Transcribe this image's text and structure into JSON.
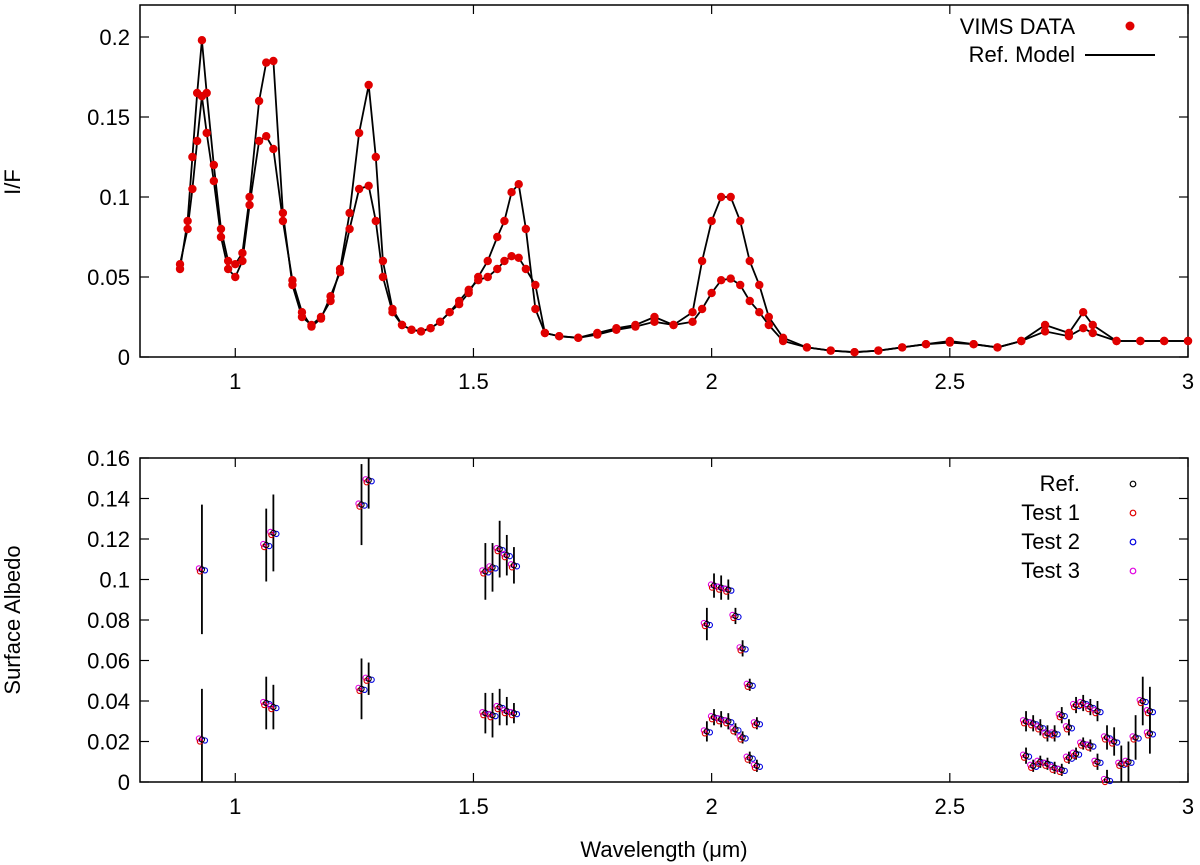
{
  "chart_data": [
    {
      "type": "line",
      "ylabel": "I/F",
      "xlim": [
        0.8,
        3.0
      ],
      "ylim": [
        0,
        0.22
      ],
      "xticks": [
        "1",
        "1.5",
        "2",
        "2.5",
        "3"
      ],
      "xtick_values": [
        1,
        1.5,
        2,
        2.5,
        3
      ],
      "yticks": [
        "0",
        "0.05",
        "0.1",
        "0.15",
        "0.2"
      ],
      "ytick_values": [
        0,
        0.05,
        0.1,
        0.15,
        0.2
      ],
      "legend_position": "top-right",
      "legend": [
        {
          "label": "VIMS DATA",
          "marker": "dot",
          "color": "#e00000"
        },
        {
          "label": "Ref. Model",
          "marker": "line",
          "color": "#000000"
        }
      ],
      "series": [
        {
          "name": "spectrum-high",
          "x": [
            0.884,
            0.9,
            0.91,
            0.92,
            0.93,
            0.94,
            0.955,
            0.97,
            0.985,
            1.0,
            1.015,
            1.03,
            1.05,
            1.065,
            1.08,
            1.1,
            1.12,
            1.14,
            1.16,
            1.18,
            1.2,
            1.22,
            1.24,
            1.26,
            1.28,
            1.295,
            1.31,
            1.33,
            1.35,
            1.37,
            1.39,
            1.41,
            1.43,
            1.45,
            1.47,
            1.49,
            1.51,
            1.53,
            1.55,
            1.565,
            1.58,
            1.595,
            1.61,
            1.63,
            1.65,
            1.68,
            1.72,
            1.76,
            1.8,
            1.84,
            1.88,
            1.92,
            1.96,
            1.98,
            2.0,
            2.02,
            2.04,
            2.06,
            2.08,
            2.1,
            2.12,
            2.15,
            2.2,
            2.25,
            2.3,
            2.35,
            2.4,
            2.45,
            2.5,
            2.55,
            2.6,
            2.65,
            2.7,
            2.75,
            2.78,
            2.8,
            2.85,
            2.9,
            2.95,
            3.0
          ],
          "values": [
            0.055,
            0.085,
            0.125,
            0.165,
            0.198,
            0.165,
            0.12,
            0.08,
            0.06,
            0.058,
            0.065,
            0.1,
            0.16,
            0.184,
            0.185,
            0.09,
            0.045,
            0.025,
            0.02,
            0.025,
            0.035,
            0.055,
            0.09,
            0.14,
            0.17,
            0.125,
            0.06,
            0.03,
            0.02,
            0.017,
            0.016,
            0.018,
            0.022,
            0.028,
            0.033,
            0.04,
            0.05,
            0.06,
            0.075,
            0.085,
            0.103,
            0.108,
            0.08,
            0.03,
            0.015,
            0.013,
            0.012,
            0.015,
            0.018,
            0.02,
            0.025,
            0.02,
            0.028,
            0.06,
            0.085,
            0.1,
            0.1,
            0.085,
            0.06,
            0.045,
            0.025,
            0.012,
            0.006,
            0.004,
            0.003,
            0.004,
            0.006,
            0.008,
            0.01,
            0.008,
            0.006,
            0.01,
            0.02,
            0.015,
            0.028,
            0.02,
            0.01,
            0.01,
            0.01,
            0.01
          ]
        },
        {
          "name": "spectrum-low",
          "x": [
            0.884,
            0.9,
            0.91,
            0.92,
            0.93,
            0.94,
            0.955,
            0.97,
            0.985,
            1.0,
            1.015,
            1.03,
            1.05,
            1.065,
            1.08,
            1.1,
            1.12,
            1.14,
            1.16,
            1.18,
            1.2,
            1.22,
            1.24,
            1.26,
            1.28,
            1.295,
            1.31,
            1.33,
            1.35,
            1.37,
            1.39,
            1.41,
            1.43,
            1.45,
            1.47,
            1.49,
            1.51,
            1.53,
            1.55,
            1.565,
            1.58,
            1.595,
            1.61,
            1.63,
            1.65,
            1.68,
            1.72,
            1.76,
            1.8,
            1.84,
            1.88,
            1.92,
            1.96,
            1.98,
            2.0,
            2.02,
            2.04,
            2.06,
            2.08,
            2.1,
            2.12,
            2.15,
            2.2,
            2.25,
            2.3,
            2.35,
            2.4,
            2.45,
            2.5,
            2.55,
            2.6,
            2.65,
            2.7,
            2.75,
            2.78,
            2.8,
            2.85,
            2.9,
            2.95,
            3.0
          ],
          "values": [
            0.058,
            0.08,
            0.105,
            0.135,
            0.163,
            0.14,
            0.11,
            0.075,
            0.055,
            0.05,
            0.06,
            0.095,
            0.135,
            0.138,
            0.13,
            0.085,
            0.048,
            0.028,
            0.019,
            0.024,
            0.038,
            0.053,
            0.08,
            0.105,
            0.107,
            0.085,
            0.05,
            0.028,
            0.02,
            0.017,
            0.016,
            0.018,
            0.022,
            0.028,
            0.035,
            0.042,
            0.048,
            0.05,
            0.055,
            0.06,
            0.063,
            0.062,
            0.055,
            0.045,
            0.015,
            0.013,
            0.012,
            0.014,
            0.017,
            0.019,
            0.022,
            0.02,
            0.022,
            0.03,
            0.04,
            0.048,
            0.049,
            0.045,
            0.035,
            0.028,
            0.02,
            0.01,
            0.006,
            0.004,
            0.003,
            0.004,
            0.006,
            0.008,
            0.009,
            0.008,
            0.006,
            0.01,
            0.016,
            0.013,
            0.018,
            0.015,
            0.01,
            0.01,
            0.01,
            0.01
          ]
        }
      ]
    },
    {
      "type": "scatter",
      "xlabel": "Wavelength (μm)",
      "ylabel": "Surface Albedo",
      "xlim": [
        0.8,
        3.0
      ],
      "ylim": [
        0,
        0.16
      ],
      "xticks": [
        "1",
        "1.5",
        "2",
        "2.5",
        "3"
      ],
      "xtick_values": [
        1,
        1.5,
        2,
        2.5,
        3
      ],
      "yticks": [
        "0",
        "0.02",
        "0.04",
        "0.06",
        "0.08",
        "0.1",
        "0.12",
        "0.14",
        "0.16"
      ],
      "ytick_values": [
        0,
        0.02,
        0.04,
        0.06,
        0.08,
        0.1,
        0.12,
        0.14,
        0.16
      ],
      "legend_position": "top-right",
      "legend": [
        {
          "label": "Ref.",
          "color": "#000000"
        },
        {
          "label": "Test 1",
          "color": "#e00000"
        },
        {
          "label": "Test 2",
          "color": "#0000e0"
        },
        {
          "label": "Test 3",
          "color": "#e000e0"
        }
      ],
      "points": [
        {
          "x": 0.93,
          "y": 0.105,
          "err": 0.032
        },
        {
          "x": 0.93,
          "y": 0.021,
          "err": 0.025
        },
        {
          "x": 1.065,
          "y": 0.117,
          "err": 0.018
        },
        {
          "x": 1.08,
          "y": 0.123,
          "err": 0.019
        },
        {
          "x": 1.065,
          "y": 0.039,
          "err": 0.013
        },
        {
          "x": 1.08,
          "y": 0.037,
          "err": 0.011
        },
        {
          "x": 1.265,
          "y": 0.137,
          "err": 0.02
        },
        {
          "x": 1.28,
          "y": 0.149,
          "err": 0.014
        },
        {
          "x": 1.265,
          "y": 0.046,
          "err": 0.015
        },
        {
          "x": 1.28,
          "y": 0.051,
          "err": 0.008
        },
        {
          "x": 1.525,
          "y": 0.104,
          "err": 0.014
        },
        {
          "x": 1.54,
          "y": 0.106,
          "err": 0.012
        },
        {
          "x": 1.555,
          "y": 0.115,
          "err": 0.014
        },
        {
          "x": 1.57,
          "y": 0.112,
          "err": 0.01
        },
        {
          "x": 1.585,
          "y": 0.107,
          "err": 0.009
        },
        {
          "x": 1.525,
          "y": 0.034,
          "err": 0.01
        },
        {
          "x": 1.54,
          "y": 0.033,
          "err": 0.011
        },
        {
          "x": 1.555,
          "y": 0.037,
          "err": 0.009
        },
        {
          "x": 1.57,
          "y": 0.035,
          "err": 0.007
        },
        {
          "x": 1.585,
          "y": 0.034,
          "err": 0.005
        },
        {
          "x": 1.99,
          "y": 0.078,
          "err": 0.008
        },
        {
          "x": 2.005,
          "y": 0.097,
          "err": 0.006
        },
        {
          "x": 2.02,
          "y": 0.096,
          "err": 0.006
        },
        {
          "x": 2.035,
          "y": 0.095,
          "err": 0.005
        },
        {
          "x": 2.05,
          "y": 0.082,
          "err": 0.004
        },
        {
          "x": 2.065,
          "y": 0.066,
          "err": 0.004
        },
        {
          "x": 2.08,
          "y": 0.048,
          "err": 0.003
        },
        {
          "x": 2.095,
          "y": 0.029,
          "err": 0.003
        },
        {
          "x": 1.99,
          "y": 0.025,
          "err": 0.005
        },
        {
          "x": 2.005,
          "y": 0.032,
          "err": 0.004
        },
        {
          "x": 2.02,
          "y": 0.031,
          "err": 0.004
        },
        {
          "x": 2.035,
          "y": 0.03,
          "err": 0.004
        },
        {
          "x": 2.05,
          "y": 0.026,
          "err": 0.003
        },
        {
          "x": 2.065,
          "y": 0.022,
          "err": 0.003
        },
        {
          "x": 2.08,
          "y": 0.012,
          "err": 0.003
        },
        {
          "x": 2.095,
          "y": 0.008,
          "err": 0.003
        },
        {
          "x": 2.66,
          "y": 0.03,
          "err": 0.005
        },
        {
          "x": 2.675,
          "y": 0.029,
          "err": 0.004
        },
        {
          "x": 2.69,
          "y": 0.027,
          "err": 0.004
        },
        {
          "x": 2.705,
          "y": 0.024,
          "err": 0.004
        },
        {
          "x": 2.72,
          "y": 0.024,
          "err": 0.004
        },
        {
          "x": 2.735,
          "y": 0.033,
          "err": 0.004
        },
        {
          "x": 2.75,
          "y": 0.027,
          "err": 0.004
        },
        {
          "x": 2.765,
          "y": 0.038,
          "err": 0.004
        },
        {
          "x": 2.78,
          "y": 0.039,
          "err": 0.004
        },
        {
          "x": 2.795,
          "y": 0.037,
          "err": 0.004
        },
        {
          "x": 2.81,
          "y": 0.035,
          "err": 0.005
        },
        {
          "x": 2.83,
          "y": 0.022,
          "err": 0.006
        },
        {
          "x": 2.845,
          "y": 0.02,
          "err": 0.007
        },
        {
          "x": 2.86,
          "y": 0.009,
          "err": 0.009
        },
        {
          "x": 2.875,
          "y": 0.01,
          "err": 0.01
        },
        {
          "x": 2.89,
          "y": 0.022,
          "err": 0.011
        },
        {
          "x": 2.905,
          "y": 0.04,
          "err": 0.012
        },
        {
          "x": 2.92,
          "y": 0.035,
          "err": 0.012
        },
        {
          "x": 2.66,
          "y": 0.013,
          "err": 0.004
        },
        {
          "x": 2.675,
          "y": 0.008,
          "err": 0.003
        },
        {
          "x": 2.69,
          "y": 0.01,
          "err": 0.003
        },
        {
          "x": 2.705,
          "y": 0.009,
          "err": 0.003
        },
        {
          "x": 2.72,
          "y": 0.007,
          "err": 0.003
        },
        {
          "x": 2.735,
          "y": 0.006,
          "err": 0.003
        },
        {
          "x": 2.75,
          "y": 0.012,
          "err": 0.003
        },
        {
          "x": 2.765,
          "y": 0.014,
          "err": 0.003
        },
        {
          "x": 2.78,
          "y": 0.019,
          "err": 0.003
        },
        {
          "x": 2.795,
          "y": 0.018,
          "err": 0.003
        },
        {
          "x": 2.81,
          "y": 0.01,
          "err": 0.004
        },
        {
          "x": 2.83,
          "y": 0.001,
          "err": 0.005
        },
        {
          "x": 2.92,
          "y": 0.024,
          "err": 0.01
        }
      ]
    }
  ]
}
